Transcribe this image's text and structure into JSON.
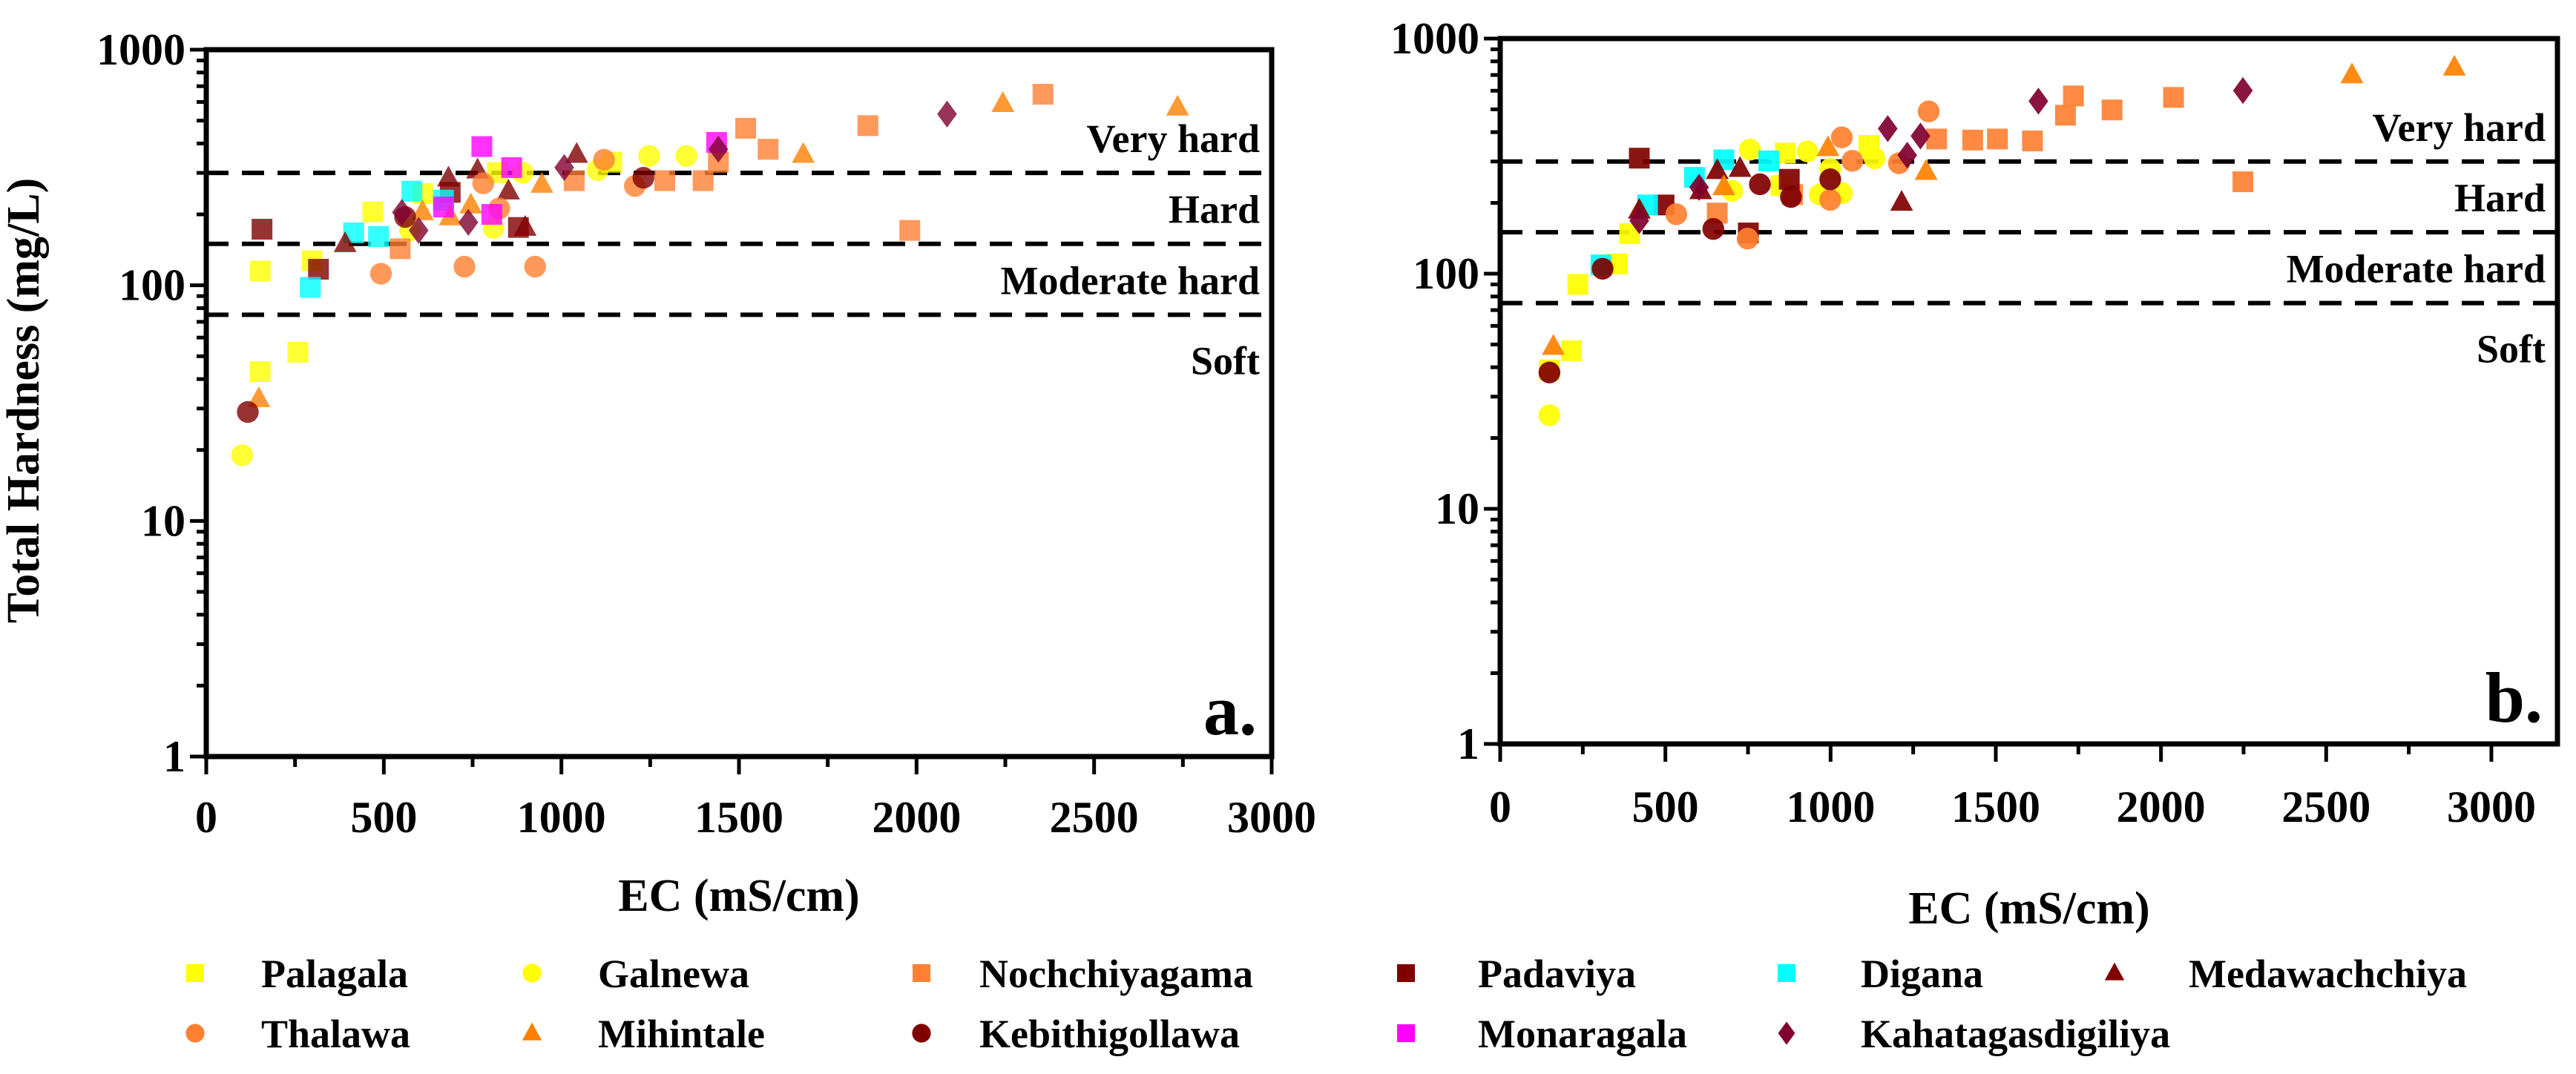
{
  "chart_data": [
    {
      "type": "scatter",
      "panel_label": "a.",
      "xlabel": "EC (mS/cm)",
      "ylabel": "Total Hardness (mg/L)",
      "xlim": [
        0,
        3000
      ],
      "ylim": [
        1,
        1000
      ],
      "yscale": "log",
      "xticks": [
        "0",
        "500",
        "1000",
        "1500",
        "2000",
        "2500",
        "3000"
      ],
      "yticks": [
        "1",
        "10",
        "100",
        "1000"
      ],
      "thresholds": [
        {
          "value": 300,
          "label": "Very hard"
        },
        {
          "value": 150,
          "label": "Hard"
        },
        {
          "value": 75,
          "label": "Moderate hard"
        },
        {
          "value": 75,
          "label": "Soft",
          "below": true
        }
      ],
      "series": [
        {
          "name": "Palagala",
          "points": [
            [
              152,
              115
            ],
            [
              152,
              43
            ],
            [
              258,
              52
            ],
            [
              298,
              127
            ],
            [
              469,
              205
            ],
            [
              609,
              245
            ],
            [
              820,
              301
            ],
            [
              1142,
              333
            ]
          ]
        },
        {
          "name": "Galnewa",
          "points": [
            [
              101,
              19
            ],
            [
              574,
              171
            ],
            [
              809,
              175
            ],
            [
              891,
              301
            ],
            [
              1102,
              308
            ],
            [
              1247,
              354
            ],
            [
              1352,
              354
            ]
          ]
        },
        {
          "name": "Nochchiyagama",
          "points": [
            [
              546,
              143
            ],
            [
              1036,
              278
            ],
            [
              1291,
              278
            ],
            [
              1399,
              278
            ],
            [
              1442,
              333
            ],
            [
              1519,
              464
            ],
            [
              1582,
              378
            ],
            [
              1863,
              476
            ],
            [
              1981,
              171
            ],
            [
              2356,
              647
            ]
          ]
        },
        {
          "name": "Padaviya",
          "points": [
            [
              157,
              173
            ],
            [
              316,
              117
            ],
            [
              687,
              248
            ],
            [
              879,
              176
            ]
          ]
        },
        {
          "name": "Digana",
          "points": [
            [
              293,
              98
            ],
            [
              415,
              167
            ],
            [
              485,
              161
            ],
            [
              579,
              251
            ],
            [
              668,
              230
            ]
          ]
        },
        {
          "name": "Medawachchiya",
          "points": [
            [
              391,
              150
            ],
            [
              682,
              285
            ],
            [
              764,
              308
            ],
            [
              851,
              251
            ],
            [
              898,
              176
            ],
            [
              1043,
              359
            ]
          ]
        },
        {
          "name": "Thalawa",
          "points": [
            [
              492,
              112
            ],
            [
              727,
              120
            ],
            [
              926,
              120
            ],
            [
              780,
              271
            ],
            [
              825,
              212
            ],
            [
              1120,
              341
            ],
            [
              1207,
              264
            ]
          ]
        },
        {
          "name": "Mihintale",
          "points": [
            [
              148,
              33
            ],
            [
              609,
              205
            ],
            [
              687,
              195
            ],
            [
              745,
              219
            ],
            [
              945,
              268
            ],
            [
              1681,
              359
            ],
            [
              2243,
              590
            ],
            [
              2735,
              570
            ]
          ]
        },
        {
          "name": "Kebithigollawa",
          "points": [
            [
              117,
              29
            ],
            [
              1231,
              286
            ],
            [
              560,
              195
            ]
          ]
        },
        {
          "name": "Monaragala",
          "points": [
            [
              776,
              388
            ],
            [
              804,
              200
            ],
            [
              860,
              316
            ],
            [
              1437,
              404
            ],
            [
              668,
              215
            ]
          ]
        },
        {
          "name": "Kahatagasdigiliya",
          "points": [
            [
              551,
              204
            ],
            [
              598,
              171
            ],
            [
              738,
              185
            ],
            [
              1008,
              316
            ],
            [
              1442,
              378
            ],
            [
              2086,
              533
            ]
          ]
        }
      ]
    },
    {
      "type": "scatter",
      "panel_label": "b.",
      "xlabel": "EC (mS/cm)",
      "ylabel": "",
      "xlim": [
        0,
        3200
      ],
      "ylim": [
        1,
        1000
      ],
      "yscale": "log",
      "xticks": [
        "0",
        "500",
        "1000",
        "1500",
        "2000",
        "2500",
        "3000"
      ],
      "yticks": [
        "1",
        "10",
        "100",
        "1000"
      ],
      "thresholds": [
        {
          "value": 300,
          "label": "Very hard"
        },
        {
          "value": 150,
          "label": "Hard"
        },
        {
          "value": 75,
          "label": "Moderate hard"
        },
        {
          "value": 75,
          "label": "Soft",
          "below": true
        }
      ],
      "series": [
        {
          "name": "Palagala",
          "points": [
            [
              149,
              39
            ],
            [
              216,
              47
            ],
            [
              235,
              90
            ],
            [
              354,
              110
            ],
            [
              392,
              148
            ],
            [
              850,
              237
            ],
            [
              863,
              326
            ],
            [
              1116,
              351
            ]
          ]
        },
        {
          "name": "Galnewa",
          "points": [
            [
              149,
              25
            ],
            [
              702,
              225
            ],
            [
              756,
              337
            ],
            [
              930,
              331
            ],
            [
              967,
              217
            ],
            [
              1034,
              220
            ],
            [
              999,
              279
            ],
            [
              1133,
              310
            ]
          ]
        },
        {
          "name": "Nochchiyagama",
          "points": [
            [
              657,
              181
            ],
            [
              885,
              217
            ],
            [
              1321,
              374
            ],
            [
              1430,
              370
            ],
            [
              1505,
              374
            ],
            [
              1611,
              367
            ],
            [
              1711,
              472
            ],
            [
              1735,
              570
            ],
            [
              1852,
              497
            ],
            [
              2038,
              562
            ],
            [
              2248,
              246
            ]
          ]
        },
        {
          "name": "Padaviya",
          "points": [
            [
              421,
              310
            ],
            [
              496,
              196
            ],
            [
              751,
              149
            ],
            [
              875,
              252
            ]
          ]
        },
        {
          "name": "Digana",
          "points": [
            [
              305,
              109
            ],
            [
              446,
              196
            ],
            [
              588,
              257
            ],
            [
              677,
              305
            ],
            [
              813,
              302
            ]
          ]
        },
        {
          "name": "Medawachchiya",
          "points": [
            [
              421,
              186
            ],
            [
              607,
              225
            ],
            [
              726,
              280
            ],
            [
              657,
              274
            ],
            [
              1215,
              201
            ]
          ]
        },
        {
          "name": "Thalawa",
          "points": [
            [
              533,
              179
            ],
            [
              749,
              141
            ],
            [
              1034,
              380
            ],
            [
              1066,
              302
            ],
            [
              1207,
              295
            ],
            [
              1297,
              490
            ],
            [
              999,
              206
            ]
          ]
        },
        {
          "name": "Mihintale",
          "points": [
            [
              161,
              49
            ],
            [
              677,
              234
            ],
            [
              992,
              343
            ],
            [
              1289,
              272
            ],
            [
              2578,
              700
            ],
            [
              2888,
              755
            ]
          ]
        },
        {
          "name": "Kebithigollawa",
          "points": [
            [
              149,
              38
            ],
            [
              310,
              105
            ],
            [
              645,
              155
            ],
            [
              786,
              240
            ],
            [
              880,
              212
            ],
            [
              999,
              252
            ]
          ]
        },
        {
          "name": "Monaragala",
          "points": []
        },
        {
          "name": "Kahatagasdigiliya",
          "points": [
            [
              421,
              168
            ],
            [
              602,
              233
            ],
            [
              1173,
              414
            ],
            [
              1232,
              319
            ],
            [
              1272,
              385
            ],
            [
              1629,
              542
            ],
            [
              2248,
              601
            ]
          ]
        }
      ]
    }
  ],
  "legend": [
    {
      "name": "Palagala",
      "marker": "square",
      "color": "#FFFF00"
    },
    {
      "name": "Galnewa",
      "marker": "circle",
      "color": "#FFFF00"
    },
    {
      "name": "Nochchiyagama",
      "marker": "square",
      "color": "#FF8033"
    },
    {
      "name": "Padaviya",
      "marker": "square",
      "color": "#800000"
    },
    {
      "name": "Digana",
      "marker": "square",
      "color": "#00FFFF"
    },
    {
      "name": "Medawachchiya",
      "marker": "triangle",
      "color": "#800000"
    },
    {
      "name": "Thalawa",
      "marker": "circle",
      "color": "#FF8030"
    },
    {
      "name": "Mihintale",
      "marker": "triangle",
      "color": "#FF8000"
    },
    {
      "name": "Kebithigollawa",
      "marker": "circle",
      "color": "#800000"
    },
    {
      "name": "Monaragala",
      "marker": "square",
      "color": "#FF00FF"
    },
    {
      "name": "Kahatagasdigiliya",
      "marker": "diamond",
      "color": "#800030"
    }
  ]
}
